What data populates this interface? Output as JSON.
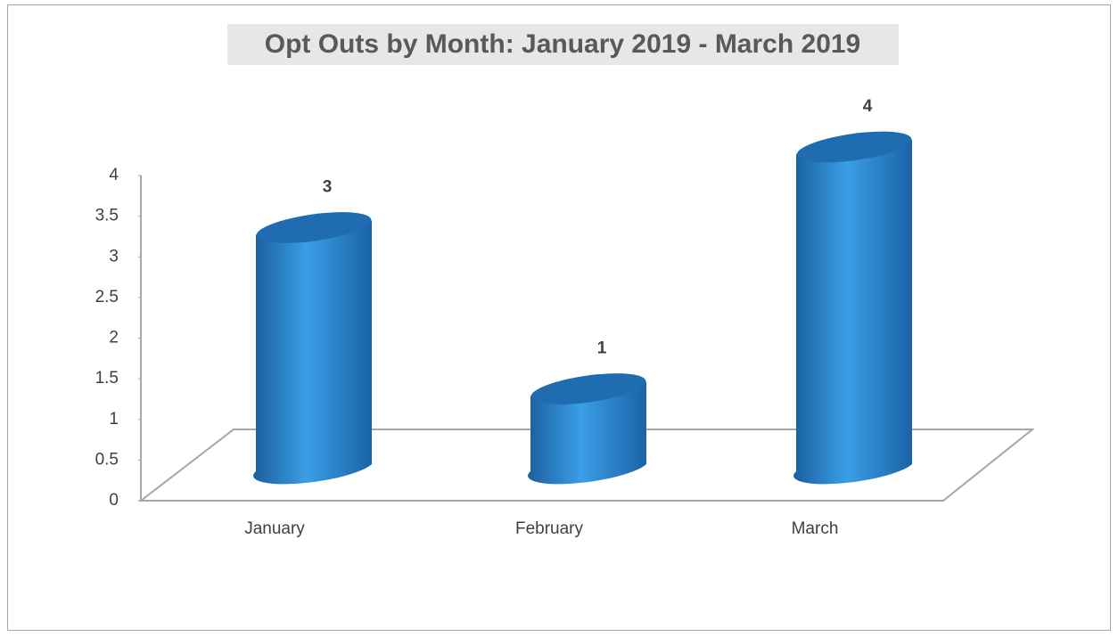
{
  "chart_data": {
    "type": "bar",
    "title": "Opt Outs by Month: January 2019 - March 2019",
    "categories": [
      "January",
      "February",
      "March"
    ],
    "values": [
      3,
      1,
      4
    ],
    "color": "#2f8ad8",
    "ylim": [
      0,
      4
    ],
    "yticks": [
      0,
      0.5,
      1,
      1.5,
      2,
      2.5,
      3,
      3.5,
      4
    ]
  }
}
